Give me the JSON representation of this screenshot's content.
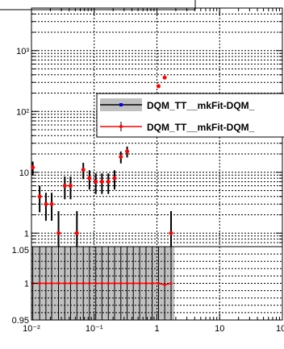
{
  "chart_data": [
    {
      "type": "scatter",
      "panel": "main",
      "x_scale": "log",
      "y_scale": "log",
      "xlim": [
        0.01,
        100
      ],
      "ylim": [
        0.6,
        5000
      ],
      "grid": true,
      "y_ticks": [
        {
          "value": 1,
          "label": "1"
        },
        {
          "value": 10,
          "label": "10"
        },
        {
          "value": 100,
          "label": "10²"
        },
        {
          "value": 1000,
          "label": "10³"
        }
      ],
      "legend": {
        "placement": "top-right",
        "entries": [
          {
            "label": "DQM_TT__mkFit-DQM_",
            "color": "#0000ff",
            "style": "box"
          },
          {
            "label": "DQM_TT__mkFit-DQM_",
            "color": "#ff0000",
            "style": "line"
          }
        ]
      },
      "series": [
        {
          "color": "#ff0000",
          "points": [
            {
              "x": 0.0105,
              "y": 12,
              "ylo": 9,
              "yhi": 15
            },
            {
              "x": 0.0135,
              "y": 4,
              "ylo": 2.2,
              "yhi": 6
            },
            {
              "x": 0.017,
              "y": 3,
              "ylo": 1.6,
              "yhi": 4.6
            },
            {
              "x": 0.021,
              "y": 3,
              "ylo": 1.6,
              "yhi": 4.6
            },
            {
              "x": 0.027,
              "y": 1,
              "ylo": 0.6,
              "yhi": 2.3
            },
            {
              "x": 0.034,
              "y": 6,
              "ylo": 3.6,
              "yhi": 8.5
            },
            {
              "x": 0.042,
              "y": 6,
              "ylo": 3.6,
              "yhi": 8.5
            },
            {
              "x": 0.053,
              "y": 1,
              "ylo": 0.6,
              "yhi": 2.3
            },
            {
              "x": 0.067,
              "y": 11,
              "ylo": 7.7,
              "yhi": 14.3
            },
            {
              "x": 0.084,
              "y": 8,
              "ylo": 5.2,
              "yhi": 10.8
            },
            {
              "x": 0.106,
              "y": 7,
              "ylo": 4.4,
              "yhi": 9.6
            },
            {
              "x": 0.133,
              "y": 7,
              "ylo": 4.4,
              "yhi": 9.6
            },
            {
              "x": 0.168,
              "y": 7,
              "ylo": 4.4,
              "yhi": 9.6
            },
            {
              "x": 0.211,
              "y": 8,
              "ylo": 5.2,
              "yhi": 10.8
            },
            {
              "x": 0.266,
              "y": 18,
              "ylo": 14,
              "yhi": 22
            },
            {
              "x": 0.335,
              "y": 22,
              "ylo": 17.5,
              "yhi": 26.5
            },
            {
              "x": 1.06,
              "y": 260,
              "ylo": 244,
              "yhi": 276
            },
            {
              "x": 1.33,
              "y": 360,
              "ylo": 341,
              "yhi": 379
            },
            {
              "x": 1.68,
              "y": 1,
              "ylo": 0.6,
              "yhi": 2.3
            }
          ]
        }
      ]
    },
    {
      "type": "line",
      "panel": "ratio",
      "x_scale": "log",
      "xlim": [
        0.01,
        100
      ],
      "ylim": [
        0.95,
        1.05
      ],
      "grid": true,
      "x_ticks": [
        {
          "value": 0.01,
          "label": "10⁻²"
        },
        {
          "value": 0.1,
          "label": "10⁻¹"
        },
        {
          "value": 1,
          "label": "1"
        },
        {
          "value": 10,
          "label": "10"
        },
        {
          "value": 100,
          "label": "10²"
        }
      ],
      "y_ticks": [
        {
          "value": 0.95,
          "label": "0.95"
        },
        {
          "value": 1,
          "label": "1"
        },
        {
          "value": 1.05,
          "label": "1.05"
        }
      ],
      "band_range": [
        0.01,
        1.9
      ],
      "series": [
        {
          "color": "#ff0000",
          "x": [
            0.0105,
            0.0135,
            0.017,
            0.021,
            0.027,
            0.034,
            0.042,
            0.053,
            0.067,
            0.084,
            0.106,
            0.133,
            0.168,
            0.211,
            0.266,
            0.335,
            0.42,
            0.53,
            0.67,
            0.84,
            1.06,
            1.33,
            1.68
          ],
          "values": [
            1,
            1,
            1,
            1,
            1,
            1,
            1,
            1,
            1,
            1,
            1,
            1,
            1,
            1,
            1,
            1,
            1,
            1,
            1,
            1,
            1,
            0.998,
            1
          ]
        }
      ]
    }
  ]
}
